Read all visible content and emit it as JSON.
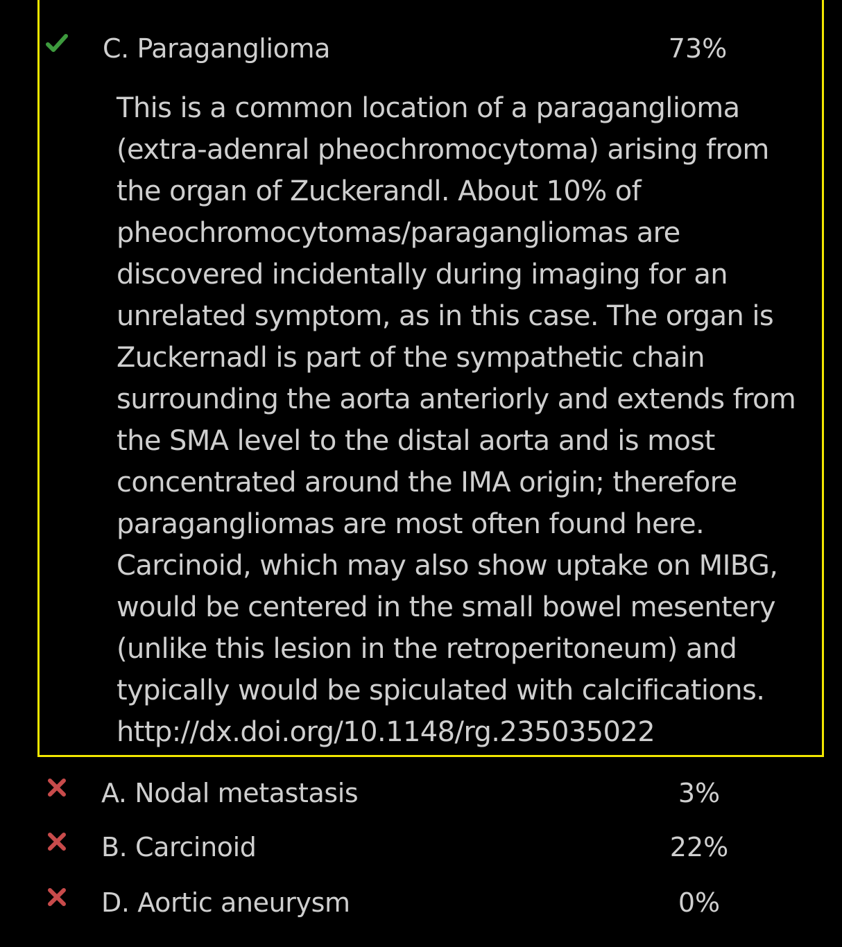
{
  "colors": {
    "background": "#000000",
    "text": "#cfcfcf",
    "highlight_border": "#f2e600",
    "correct_mark": "#3d9a3d",
    "incorrect_mark": "#c84b4b"
  },
  "correct_answer": {
    "icon": "checkmark-icon",
    "label": "C. Paraganglioma",
    "percent": "73%",
    "explanation_lines": [
      "This is a common location of a paraganglioma",
      "(extra-adenral pheochromocytoma) arising from",
      "the organ of Zuckerandl. About 10% of",
      "pheochromocytomas/paragangliomas are",
      "discovered incidentally during imaging for an",
      "unrelated symptom, as in this case. The organ is",
      "Zuckernadl is part of the sympathetic chain",
      "surrounding the aorta anteriorly and extends from",
      "the SMA level to the distal aorta and is most",
      "concentrated around the IMA origin; therefore",
      "paragangliomas are most often found here.",
      "Carcinoid, which may also show uptake on MIBG,",
      "would be centered in the small bowel mesentery",
      "(unlike this lesion in the retroperitoneum) and",
      "typically would be spiculated with calcifications.",
      "http://dx.doi.org/10.1148/rg.235035022"
    ]
  },
  "other_answers": [
    {
      "icon": "x-icon",
      "label": "A. Nodal metastasis",
      "percent": "3%"
    },
    {
      "icon": "x-icon",
      "label": "B. Carcinoid",
      "percent": "22%"
    },
    {
      "icon": "x-icon",
      "label": "D. Aortic aneurysm",
      "percent": "0%"
    }
  ]
}
